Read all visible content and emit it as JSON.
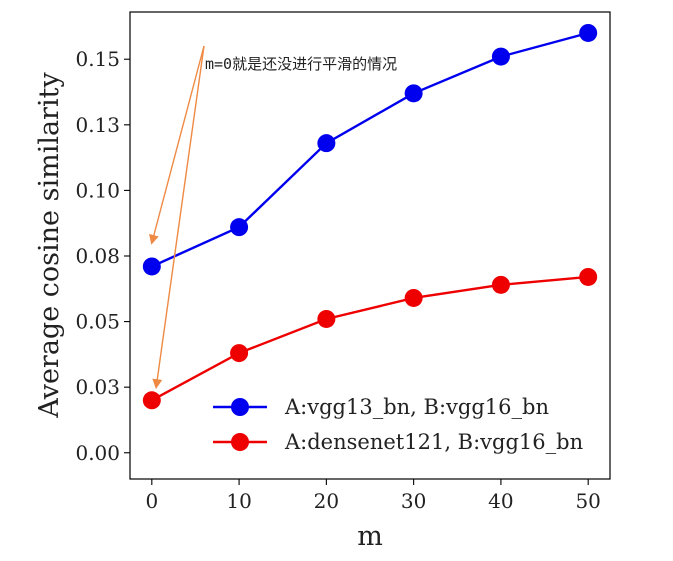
{
  "chart_data": {
    "type": "line",
    "x": [
      0,
      10,
      20,
      30,
      40,
      50
    ],
    "xticks": [
      0,
      10,
      20,
      30,
      40,
      50
    ],
    "xlim": [
      -2.5,
      52.5
    ],
    "ylim": [
      -0.01,
      0.168
    ],
    "yticks": [
      0.0,
      0.025,
      0.05,
      0.075,
      0.1,
      0.125,
      0.15
    ],
    "ytick_labels": [
      "0.00",
      "0.03",
      "0.05",
      "0.08",
      "0.10",
      "0.13",
      "0.15"
    ],
    "xlabel": "m",
    "ylabel": "Average cosine similarity",
    "series": [
      {
        "name": "A:vgg13_bn, B:vgg16_bn",
        "color": "#0000ee",
        "values": [
          0.071,
          0.086,
          0.118,
          0.137,
          0.151,
          0.16
        ]
      },
      {
        "name": "A:densenet121, B:vgg16_bn",
        "color": "#ee0000",
        "values": [
          0.02,
          0.038,
          0.051,
          0.059,
          0.064,
          0.067
        ]
      }
    ],
    "legend": {
      "position": "lower-right"
    },
    "annotation": {
      "text": "m=0就是还没进行平滑的情况",
      "color": "#ee8a44",
      "targets": [
        {
          "x": 0,
          "y": 0.08
        },
        {
          "x": 0.5,
          "y": 0.025
        }
      ]
    },
    "grid": false
  }
}
